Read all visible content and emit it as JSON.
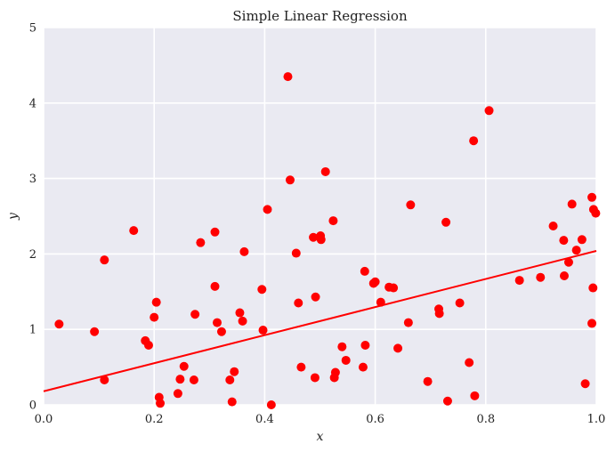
{
  "chart_data": {
    "type": "scatter",
    "title": "Simple Linear Regression",
    "xlabel": "x",
    "ylabel": "y",
    "xlim": [
      0.0,
      1.0
    ],
    "ylim": [
      0,
      5
    ],
    "xticks": [
      "0.0",
      "0.2",
      "0.4",
      "0.6",
      "0.8",
      "1.0"
    ],
    "yticks": [
      "0",
      "1",
      "2",
      "3",
      "4",
      "5"
    ],
    "xtick_values": [
      0.0,
      0.2,
      0.4,
      0.6,
      0.8,
      1.0
    ],
    "ytick_values": [
      0,
      1,
      2,
      3,
      4,
      5
    ],
    "grid": true,
    "background": "#eaeaf2",
    "grid_color": "#ffffff",
    "marker_color": "#ff0000",
    "line_color": "#ff0000",
    "series": [
      {
        "kind": "points",
        "points": [
          [
            0.028,
            1.07
          ],
          [
            0.092,
            0.97
          ],
          [
            0.11,
            0.33
          ],
          [
            0.11,
            1.92
          ],
          [
            0.163,
            2.31
          ],
          [
            0.184,
            0.85
          ],
          [
            0.19,
            0.79
          ],
          [
            0.2,
            1.16
          ],
          [
            0.204,
            1.36
          ],
          [
            0.209,
            0.1
          ],
          [
            0.211,
            0.02
          ],
          [
            0.243,
            0.15
          ],
          [
            0.247,
            0.34
          ],
          [
            0.254,
            0.51
          ],
          [
            0.272,
            0.33
          ],
          [
            0.274,
            1.2
          ],
          [
            0.284,
            2.15
          ],
          [
            0.31,
            2.29
          ],
          [
            0.31,
            1.57
          ],
          [
            0.314,
            1.09
          ],
          [
            0.322,
            0.97
          ],
          [
            0.337,
            0.33
          ],
          [
            0.341,
            0.04
          ],
          [
            0.345,
            0.44
          ],
          [
            0.355,
            1.22
          ],
          [
            0.36,
            1.11
          ],
          [
            0.363,
            2.03
          ],
          [
            0.395,
            1.53
          ],
          [
            0.397,
            0.99
          ],
          [
            0.405,
            2.59
          ],
          [
            0.412,
            0.0
          ],
          [
            0.442,
            4.35
          ],
          [
            0.446,
            2.98
          ],
          [
            0.457,
            2.01
          ],
          [
            0.461,
            1.35
          ],
          [
            0.466,
            0.5
          ],
          [
            0.488,
            2.22
          ],
          [
            0.491,
            0.36
          ],
          [
            0.492,
            1.43
          ],
          [
            0.501,
            2.24
          ],
          [
            0.502,
            2.19
          ],
          [
            0.51,
            3.09
          ],
          [
            0.524,
            2.44
          ],
          [
            0.526,
            0.36
          ],
          [
            0.528,
            0.43
          ],
          [
            0.54,
            0.77
          ],
          [
            0.547,
            0.59
          ],
          [
            0.578,
            0.5
          ],
          [
            0.581,
            1.77
          ],
          [
            0.582,
            0.79
          ],
          [
            0.597,
            1.61
          ],
          [
            0.6,
            1.63
          ],
          [
            0.61,
            1.36
          ],
          [
            0.625,
            1.56
          ],
          [
            0.633,
            1.55
          ],
          [
            0.641,
            0.75
          ],
          [
            0.66,
            1.09
          ],
          [
            0.664,
            2.65
          ],
          [
            0.695,
            0.31
          ],
          [
            0.715,
            1.27
          ],
          [
            0.716,
            1.21
          ],
          [
            0.728,
            2.42
          ],
          [
            0.731,
            0.05
          ],
          [
            0.753,
            1.35
          ],
          [
            0.77,
            0.56
          ],
          [
            0.778,
            3.5
          ],
          [
            0.78,
            0.12
          ],
          [
            0.806,
            3.9
          ],
          [
            0.861,
            1.65
          ],
          [
            0.899,
            1.69
          ],
          [
            0.922,
            2.37
          ],
          [
            0.941,
            2.18
          ],
          [
            0.942,
            1.71
          ],
          [
            0.95,
            1.89
          ],
          [
            0.956,
            2.66
          ],
          [
            0.964,
            2.05
          ],
          [
            0.974,
            2.19
          ],
          [
            0.98,
            0.28
          ],
          [
            0.992,
            2.75
          ],
          [
            0.992,
            1.08
          ],
          [
            0.994,
            1.55
          ],
          [
            0.995,
            2.59
          ],
          [
            0.999,
            2.54
          ]
        ]
      },
      {
        "kind": "fit-line",
        "points": [
          [
            0.0,
            0.18
          ],
          [
            1.0,
            2.04
          ]
        ]
      }
    ]
  }
}
